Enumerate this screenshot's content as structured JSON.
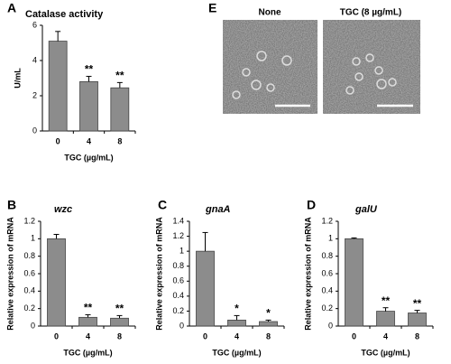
{
  "chart_data": [
    {
      "type": "bar",
      "panel": "A",
      "title": "Catalase activity",
      "title_style": "normal",
      "ylabel": "U/mL",
      "xlabel": "TGC (µg/mL)",
      "categories": [
        "0",
        "4",
        "8"
      ],
      "values": [
        5.1,
        2.8,
        2.45
      ],
      "errors": [
        0.55,
        0.3,
        0.3
      ],
      "annotations": [
        null,
        "**",
        "**"
      ],
      "color": "#8c8c8c",
      "ylim": [
        0,
        6
      ],
      "yticks": [
        0,
        2,
        4,
        6
      ]
    },
    {
      "type": "bar",
      "panel": "B",
      "title": "wzc",
      "title_style": "italic",
      "ylabel": "Relative expression of mRNA",
      "xlabel": "TGC (µg/mL)",
      "categories": [
        "0",
        "4",
        "8"
      ],
      "values": [
        1.0,
        0.1,
        0.09
      ],
      "errors": [
        0.05,
        0.03,
        0.03
      ],
      "annotations": [
        null,
        "**",
        "**"
      ],
      "color": "#8c8c8c",
      "ylim": [
        0,
        1.2
      ],
      "yticks": [
        0,
        0.2,
        0.4,
        0.6,
        0.8,
        1,
        1.2
      ]
    },
    {
      "type": "bar",
      "panel": "C",
      "title": "gnaA",
      "title_style": "italic",
      "ylabel": "Relative expression of mRNA",
      "xlabel": "TGC (µg/mL)",
      "categories": [
        "0",
        "4",
        "8"
      ],
      "values": [
        1.0,
        0.08,
        0.06
      ],
      "errors": [
        0.25,
        0.06,
        0.02
      ],
      "annotations": [
        null,
        "*",
        "*"
      ],
      "color": "#8c8c8c",
      "ylim": [
        0,
        1.4
      ],
      "yticks": [
        0,
        0.2,
        0.4,
        0.6,
        0.8,
        1,
        1.2,
        1.4
      ]
    },
    {
      "type": "bar",
      "panel": "D",
      "title": "galU",
      "title_style": "italic",
      "ylabel": "Relative expression of mRNA",
      "xlabel": "TGC (µg/mL)",
      "categories": [
        "0",
        "4",
        "8"
      ],
      "values": [
        1.0,
        0.17,
        0.15
      ],
      "errors": [
        0.01,
        0.04,
        0.03
      ],
      "annotations": [
        null,
        "**",
        "**"
      ],
      "color": "#8c8c8c",
      "ylim": [
        0,
        1.2
      ],
      "yticks": [
        0,
        0.2,
        0.4,
        0.6,
        0.8,
        1,
        1.2
      ]
    }
  ],
  "image_panel": {
    "panel": "E",
    "labels": [
      "None",
      "TGC (8 µg/mL)"
    ]
  }
}
